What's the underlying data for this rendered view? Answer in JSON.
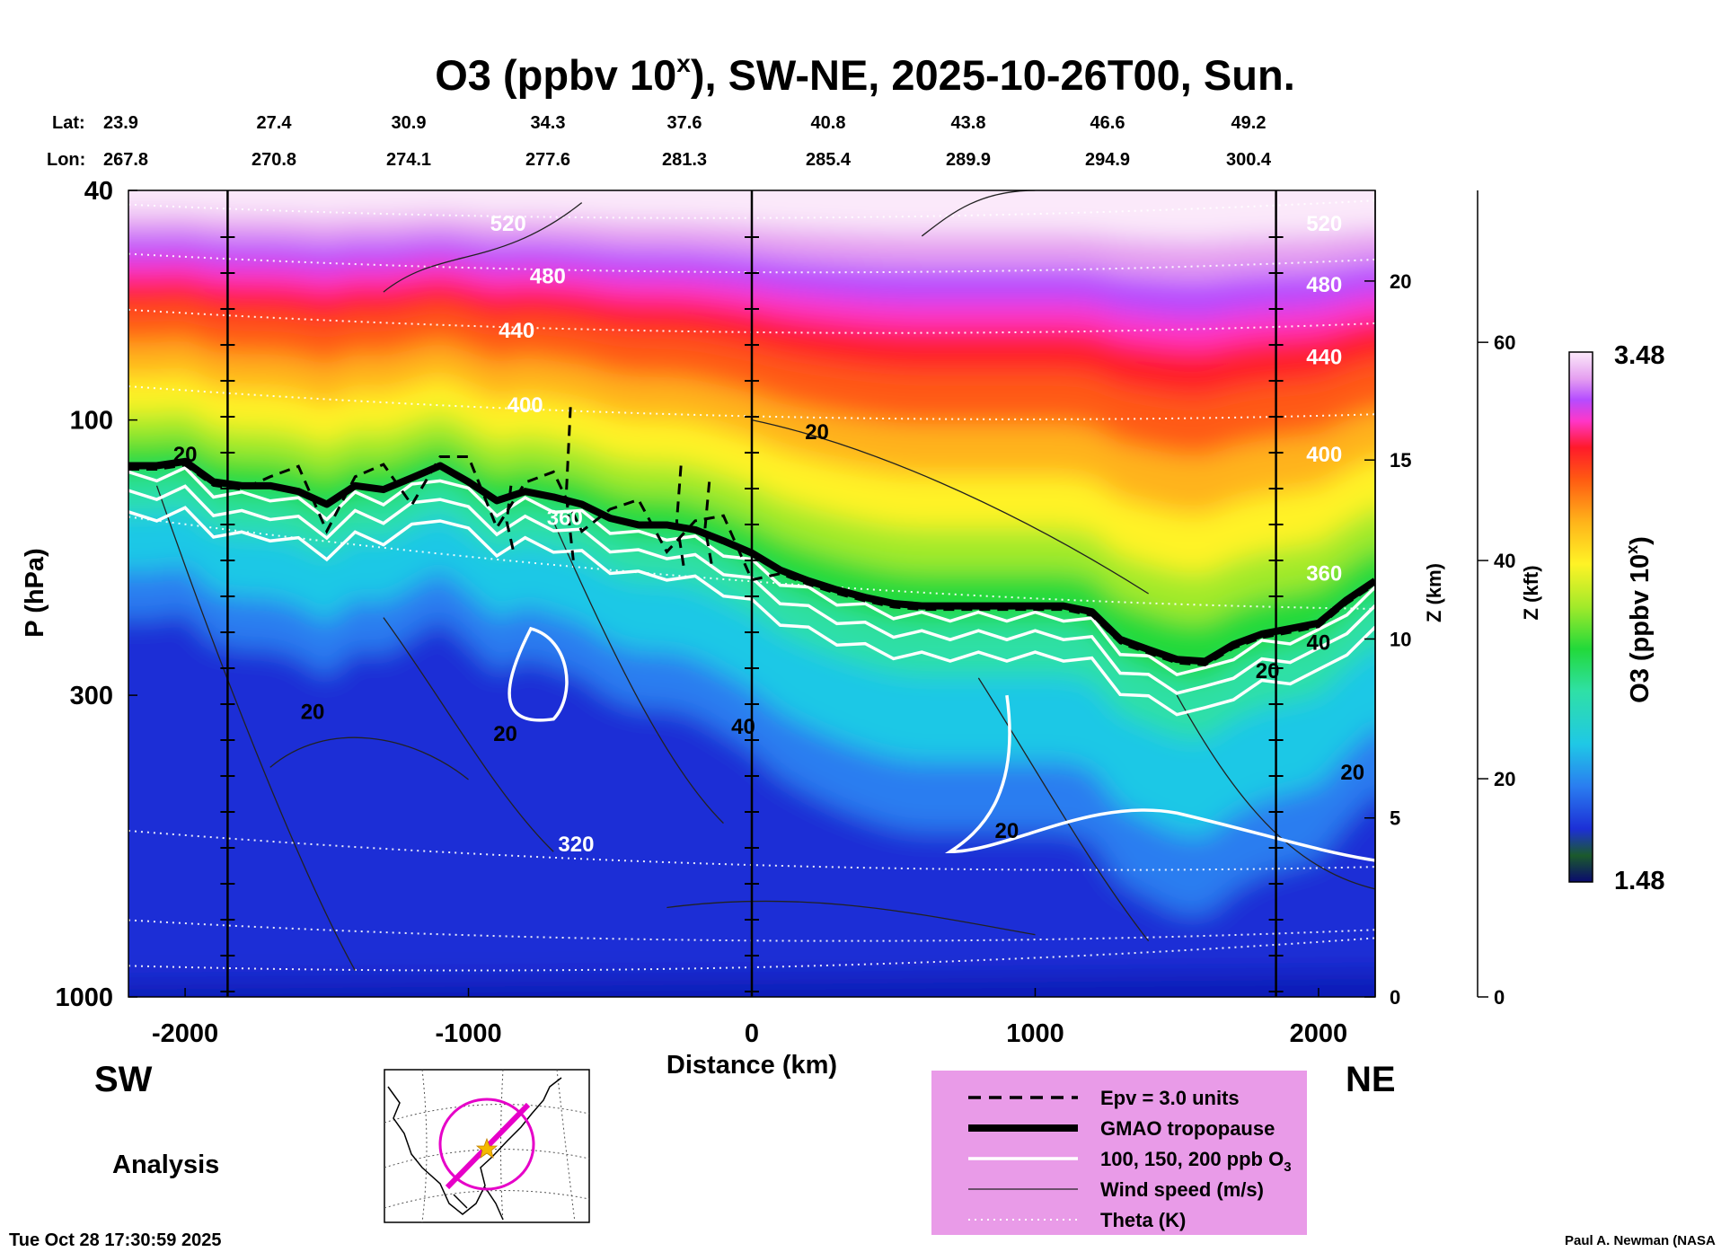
{
  "title": {
    "main": "O3 (ppbv 10",
    "sup": "x",
    "rest": "), SW-NE, 2025-10-26T00, Sun."
  },
  "coords": {
    "lat_label": "Lat:",
    "lon_label": "Lon:",
    "lat": [
      "23.9",
      "27.4",
      "30.9",
      "34.3",
      "37.6",
      "40.8",
      "43.8",
      "46.6",
      "49.2"
    ],
    "lon": [
      "267.8",
      "270.8",
      "274.1",
      "277.6",
      "281.3",
      "285.4",
      "289.9",
      "294.9",
      "300.4"
    ]
  },
  "chart_data": {
    "type": "heatmap",
    "title": "O3 (ppbv 10^x), SW-NE, 2025-10-26T00, Sun.",
    "xlabel": "Distance (km)",
    "ylabel": "P (hPa)",
    "xlim": [
      -2200,
      2200
    ],
    "ylim": [
      1000,
      40
    ],
    "x_ticks": [
      -2000,
      -1000,
      0,
      1000,
      2000
    ],
    "x_tick_labels": [
      "-2000",
      "-1000",
      "0",
      "1000",
      "2000"
    ],
    "p_ticks": [
      40,
      100,
      300,
      1000
    ],
    "p_tick_labels": [
      "40",
      "100",
      "300",
      "1000"
    ],
    "z_km_label": "Z (km)",
    "z_km_ticks": [
      0,
      5,
      10,
      15,
      20
    ],
    "z_km_tick_labels": [
      "0",
      "5",
      "10",
      "15",
      "20"
    ],
    "z_kft_label": "Z (kft)",
    "z_kft_ticks": [
      0,
      20,
      40,
      60
    ],
    "z_kft_tick_labels": [
      "0",
      "20",
      "40",
      "60"
    ],
    "colorbar": {
      "label": "O3 (ppbv 10",
      "label_sup": "x",
      "label_end": ")",
      "min": 1.48,
      "max": 3.48,
      "min_label": "1.48",
      "max_label": "3.48"
    },
    "vertical_marker_lines_km": [
      -1850,
      0,
      1850
    ],
    "theta_contours_K": [
      {
        "value": 320,
        "label": "320",
        "label_x": -620
      },
      {
        "value": 360,
        "label": "360",
        "label_x": -660
      },
      {
        "value": 400,
        "label": "400",
        "label_x": -800
      },
      {
        "value": 440,
        "label": "440",
        "label_x": -830
      },
      {
        "value": 480,
        "label": "480",
        "label_x": -720
      },
      {
        "value": 520,
        "label": "520",
        "label_x": -860
      }
    ],
    "theta_labels_right": [
      "520",
      "480",
      "440",
      "400",
      "360"
    ],
    "wind_speed_labels": [
      "20",
      "20",
      "20",
      "40",
      "20",
      "20",
      "20",
      "40",
      "20"
    ],
    "tropopause_hPa": [
      [
        -2200,
        120
      ],
      [
        -2100,
        120
      ],
      [
        -2000,
        118
      ],
      [
        -1900,
        128
      ],
      [
        -1800,
        130
      ],
      [
        -1700,
        130
      ],
      [
        -1600,
        133
      ],
      [
        -1500,
        140
      ],
      [
        -1400,
        130
      ],
      [
        -1300,
        132
      ],
      [
        -1200,
        126
      ],
      [
        -1100,
        120
      ],
      [
        -1000,
        128
      ],
      [
        -900,
        138
      ],
      [
        -800,
        133
      ],
      [
        -700,
        136
      ],
      [
        -600,
        140
      ],
      [
        -500,
        148
      ],
      [
        -400,
        152
      ],
      [
        -300,
        152
      ],
      [
        -200,
        155
      ],
      [
        -100,
        162
      ],
      [
        0,
        170
      ],
      [
        100,
        182
      ],
      [
        200,
        190
      ],
      [
        300,
        197
      ],
      [
        400,
        203
      ],
      [
        500,
        208
      ],
      [
        600,
        210
      ],
      [
        700,
        210
      ],
      [
        800,
        210
      ],
      [
        900,
        210
      ],
      [
        1000,
        210
      ],
      [
        1100,
        210
      ],
      [
        1200,
        215
      ],
      [
        1300,
        240
      ],
      [
        1400,
        250
      ],
      [
        1500,
        260
      ],
      [
        1600,
        262
      ],
      [
        1700,
        245
      ],
      [
        1800,
        235
      ],
      [
        1900,
        230
      ],
      [
        2000,
        225
      ],
      [
        2100,
        205
      ],
      [
        2200,
        190
      ]
    ]
  },
  "direction": {
    "left": "SW",
    "right": "NE"
  },
  "analysis_label": "Analysis",
  "legend": [
    {
      "label": "Epv = 3.0 units",
      "style": "dashed"
    },
    {
      "label": "GMAO tropopause",
      "style": "thick"
    },
    {
      "label": "100, 150, 200 ppb O",
      "sub": "3",
      "style": "white"
    },
    {
      "label": "Wind speed (m/s)",
      "style": "thin"
    },
    {
      "label": "Theta (K)",
      "style": "dotted"
    }
  ],
  "colors": {
    "legend_bg": "#e99be8",
    "map_circle": "#e600c8",
    "star": "#f5b800"
  },
  "footer": {
    "timestamp": "Tue Oct 28 17:30:59 2025",
    "credit": "Paul A. Newman (NASA"
  }
}
